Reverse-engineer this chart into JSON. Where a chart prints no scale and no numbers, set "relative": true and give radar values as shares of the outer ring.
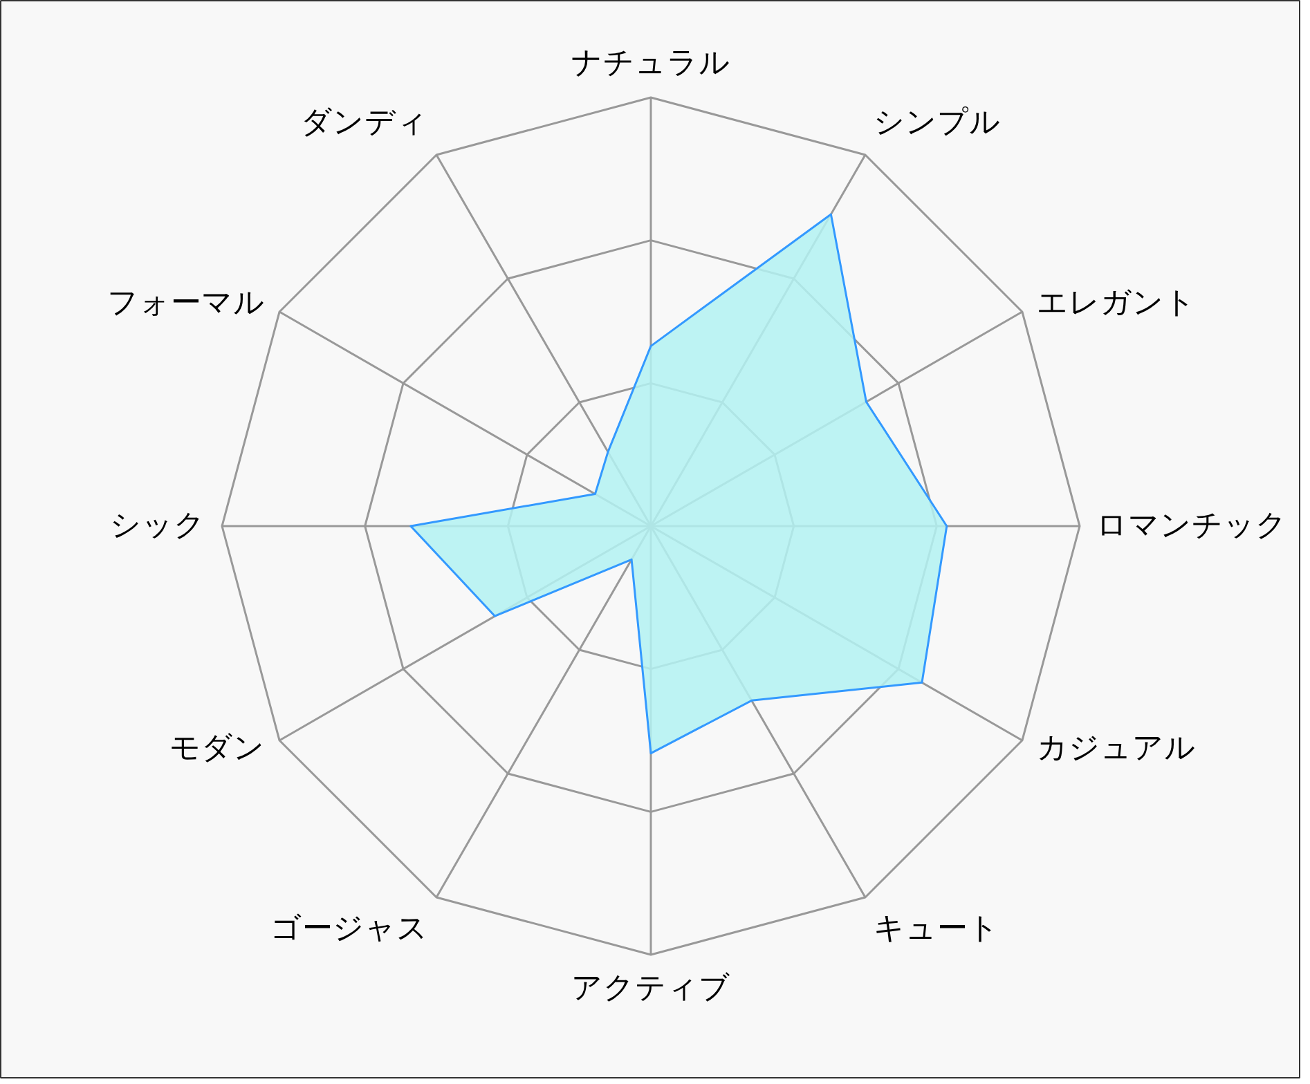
{
  "chart_data": {
    "type": "radar",
    "relative": true,
    "grid": true,
    "marker": "none",
    "categories": [
      "ナチュラル",
      "シンプル",
      "エレガント",
      "ロマンチック",
      "カジュアル",
      "キュート",
      "アクティブ",
      "ゴージャス",
      "モダン",
      "シック",
      "フォーマル",
      "ダンディ"
    ],
    "series": [
      {
        "color": "#3399ff",
        "values": [
          0.42,
          0.84,
          0.58,
          0.69,
          0.73,
          0.47,
          0.53,
          0.09,
          0.42,
          0.56,
          0.15,
          0.2
        ]
      }
    ]
  }
}
